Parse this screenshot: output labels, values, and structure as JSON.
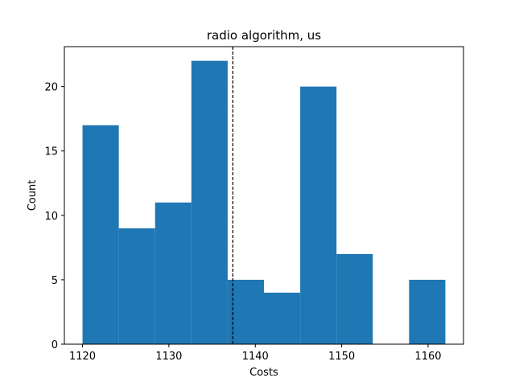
{
  "chart_data": {
    "type": "bar",
    "title": "radio algorithm, us",
    "xlabel": "Costs",
    "ylabel": "Count",
    "bins": [
      {
        "start": 1120.0,
        "end": 1124.2,
        "count": 17
      },
      {
        "start": 1124.2,
        "end": 1128.4,
        "count": 9
      },
      {
        "start": 1128.4,
        "end": 1132.6,
        "count": 11
      },
      {
        "start": 1132.6,
        "end": 1136.8,
        "count": 22
      },
      {
        "start": 1136.8,
        "end": 1141.0,
        "count": 5
      },
      {
        "start": 1141.0,
        "end": 1145.2,
        "count": 4
      },
      {
        "start": 1145.2,
        "end": 1149.4,
        "count": 20
      },
      {
        "start": 1149.4,
        "end": 1153.6,
        "count": 7
      },
      {
        "start": 1153.6,
        "end": 1157.8,
        "count": 0
      },
      {
        "start": 1157.8,
        "end": 1162.0,
        "count": 5
      }
    ],
    "mean_line": 1137.4,
    "xlim": [
      1117.9,
      1164.1
    ],
    "ylim": [
      0,
      23.1
    ],
    "xticks": [
      1120,
      1130,
      1140,
      1150,
      1160
    ],
    "yticks": [
      0,
      5,
      10,
      15,
      20
    ],
    "bar_color": "#1f77b4",
    "line_color": "#000000",
    "grid": false
  }
}
